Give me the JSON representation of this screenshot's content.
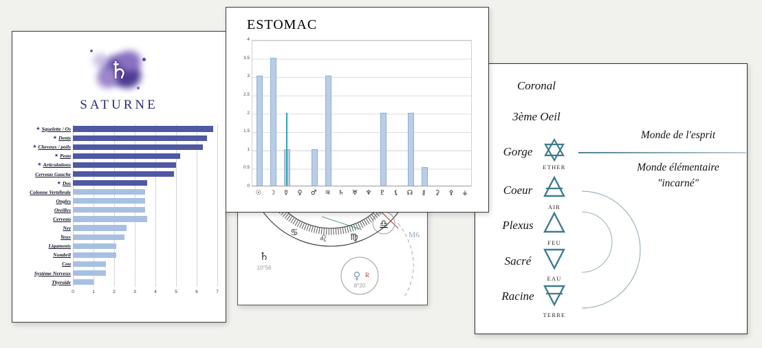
{
  "canvas": {
    "background": "#f1f1ee"
  },
  "chart_data": [
    {
      "id": "saturne-body-parts",
      "type": "bar",
      "orientation": "horizontal",
      "title": "SATURNE",
      "xlabel": "",
      "ylabel": "",
      "xlim": [
        0,
        7
      ],
      "x_ticks": [
        "0",
        "1",
        "2",
        "3",
        "4",
        "5",
        "6",
        "7"
      ],
      "grid": true,
      "categories": [
        "Squelette / Os",
        "Dents",
        "Cheveux / poils",
        "Peau",
        "Articulations",
        "Cerveau Gauche",
        "Dos",
        "Colonne Vertébrale",
        "Ongles",
        "Oreilles",
        "Cerveau",
        "Nez",
        "Yeux",
        "Ligaments",
        "Nombril",
        "Cou",
        "Système Nerveux",
        "Thyroïde"
      ],
      "values": [
        6.8,
        6.5,
        6.3,
        5.2,
        5.0,
        4.9,
        3.6,
        3.5,
        3.5,
        3.5,
        3.6,
        2.6,
        2.5,
        2.1,
        2.1,
        1.6,
        1.6,
        1.0
      ],
      "starred": [
        true,
        true,
        true,
        true,
        true,
        false,
        true,
        false,
        false,
        false,
        false,
        false,
        false,
        false,
        false,
        false,
        false,
        false
      ],
      "dark_count": 7,
      "series_color_dark": "#4f58a4",
      "series_color_light": "#a7c0e2",
      "star_glyph": "★",
      "star_color": "#4a2d8f"
    },
    {
      "id": "estomac-planets",
      "type": "bar",
      "title": "ESTOMAC",
      "xlabel": "",
      "ylabel": "",
      "ylim": [
        0,
        4
      ],
      "y_ticks": [
        "4",
        "3.5",
        "3",
        "2.5",
        "2",
        "1.5",
        "1",
        "0.5",
        "0"
      ],
      "grid": true,
      "categories": [
        "☉",
        "☽",
        "☿",
        "♀",
        "♂",
        "♃",
        "♄",
        "♅",
        "♆",
        "♇",
        "⚸",
        "☊",
        "⚷",
        "⚳",
        "⚴",
        "⚶"
      ],
      "values": [
        3,
        3.5,
        1,
        0,
        1,
        3,
        0,
        0,
        0,
        2,
        0,
        2,
        0.5,
        0,
        0,
        0
      ],
      "bar_color": "#b9cde6",
      "bar_border": "#8fafd2",
      "marker": {
        "category_index": 2,
        "value": 2,
        "color": "#2fa3b5"
      }
    }
  ],
  "saturne_panel": {
    "title_color": "#2b2878",
    "logo_glyph": "♄",
    "logo_cross": "†"
  },
  "astro_panel": {
    "zodiac": [
      "♋",
      "♌",
      "♍",
      "♎"
    ],
    "planet_label": {
      "glyph": "♄",
      "degree": "10°56"
    },
    "venus_bubble": {
      "glyph": "♀",
      "retrograde": "R",
      "degree": "8°20"
    },
    "house_label": "M6"
  },
  "chakra_panel": {
    "labels": [
      "Coronal",
      "3ème Oeil",
      "Gorge",
      "Coeur",
      "Plexus",
      "Sacré",
      "Racine"
    ],
    "elements": [
      "ETHER",
      "AIR",
      "FEU",
      "EAU",
      "TERRE"
    ],
    "symbols": [
      "hexagram",
      "air-triangle-bar",
      "fire-triangle",
      "water-triangle",
      "earth-triangle-bar"
    ],
    "right_text": {
      "line1": "Monde de l'esprit",
      "line2": "Monde élémentaire",
      "line3": "\"incarné\""
    },
    "symbol_color": "#3e7a8e",
    "divider_color": "#4f7f92"
  }
}
